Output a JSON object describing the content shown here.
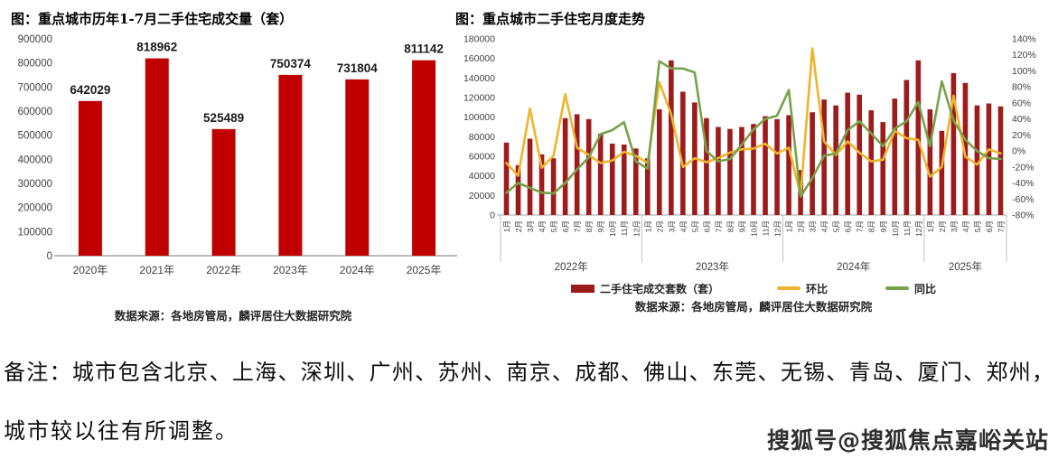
{
  "note": {
    "line1": "备注：城市包含北京、上海、深圳、广州、苏州、南京、成都、佛山、东莞、无锡、青岛、厦门、郑州，",
    "line2": "城市较以往有所调整。"
  },
  "watermark": "搜狐号@搜狐焦点嘉峪关站",
  "colors": {
    "left_bar": "#c00000",
    "right_bar": "#9e1b1b",
    "mom_line": "#efb42c",
    "yoy_line": "#76a24b",
    "axis_text": "#404040",
    "data_label": "#1a1a1a",
    "baseline": "#a6a6a6",
    "divider": "#bfbfbf"
  },
  "chart_data": [
    {
      "type": "bar",
      "title": "图：重点城市历年1-7月二手住宅成交量（套）",
      "source": "数据来源：各地房管局，麟评居住大数据研究院",
      "categories": [
        "2020年",
        "2021年",
        "2022年",
        "2023年",
        "2024年",
        "2025年"
      ],
      "values": [
        642029,
        818962,
        525489,
        750374,
        731804,
        811142
      ],
      "data_labels": [
        "642029",
        "818962",
        "525489",
        "750374",
        "731804",
        "811142"
      ],
      "ylabel": "",
      "xlabel": "",
      "ylim": [
        0,
        900000
      ],
      "ytick_step": 100000,
      "ytick_labels": [
        "0",
        "100000",
        "200000",
        "300000",
        "400000",
        "500000",
        "600000",
        "700000",
        "800000",
        "900000"
      ],
      "grid": false,
      "bar_color": "#c00000"
    },
    {
      "type": "bar+line",
      "title": "图：重点城市二手住宅月度走势",
      "source": "数据来源：各地房管局，麟评居住大数据研究院",
      "x_groups": [
        {
          "label": "2022年",
          "months": 12
        },
        {
          "label": "2023年",
          "months": 12
        },
        {
          "label": "2024年",
          "months": 12
        },
        {
          "label": "2025年",
          "months": 7
        }
      ],
      "left_ylim": [
        0,
        180000
      ],
      "left_ytick_step": 20000,
      "left_ytick_labels": [
        "0",
        "20000",
        "40000",
        "60000",
        "80000",
        "100000",
        "120000",
        "140000",
        "160000",
        "180000"
      ],
      "right_ylim_pct": [
        -80,
        140
      ],
      "right_ytick_step_pct": 20,
      "right_ytick_labels": [
        "140%",
        "120%",
        "100%",
        "80%",
        "60%",
        "40%",
        "20%",
        "0%",
        "-20%",
        "-40%",
        "-60%",
        "-80%"
      ],
      "grid": false,
      "legend_position": "bottom",
      "series": [
        {
          "name": "二手住宅成交套数（套）",
          "type": "bar",
          "axis": "left",
          "color": "#9e1b1b",
          "values": [
            74000,
            51000,
            78000,
            62000,
            58000,
            99000,
            103000,
            98000,
            83000,
            73000,
            72000,
            68000,
            58000,
            108000,
            158000,
            126000,
            115000,
            99000,
            90000,
            88000,
            90000,
            93000,
            101000,
            98000,
            102000,
            46000,
            105000,
            118000,
            112000,
            125000,
            123000,
            107000,
            95000,
            119000,
            138000,
            158000,
            108000,
            86000,
            145000,
            135000,
            112000,
            114000,
            111000
          ]
        },
        {
          "name": "环比",
          "type": "line",
          "axis": "right",
          "color": "#efb42c",
          "values_pct": [
            -15,
            -31,
            53,
            -21,
            -6,
            71,
            4,
            -5,
            -15,
            -12,
            -1,
            -6,
            -15,
            86,
            46,
            -20,
            -9,
            -14,
            -9,
            -2,
            2,
            3,
            9,
            -3,
            4,
            -55,
            128,
            12,
            -5,
            12,
            -2,
            -13,
            -11,
            25,
            16,
            14,
            -32,
            -20,
            69,
            -7,
            -17,
            2,
            -3
          ]
        },
        {
          "name": "同比",
          "type": "line",
          "axis": "right",
          "color": "#76a24b",
          "values_pct": [
            -52,
            -40,
            -46,
            -52,
            -53,
            -40,
            -23,
            -8,
            21,
            26,
            36,
            -13,
            -22,
            112,
            103,
            103,
            98,
            0,
            -13,
            -10,
            8,
            27,
            40,
            44,
            76,
            -57,
            -34,
            -6,
            -3,
            26,
            37,
            22,
            6,
            28,
            37,
            61,
            6,
            87,
            38,
            14,
            0,
            -9,
            -10
          ]
        }
      ]
    }
  ]
}
